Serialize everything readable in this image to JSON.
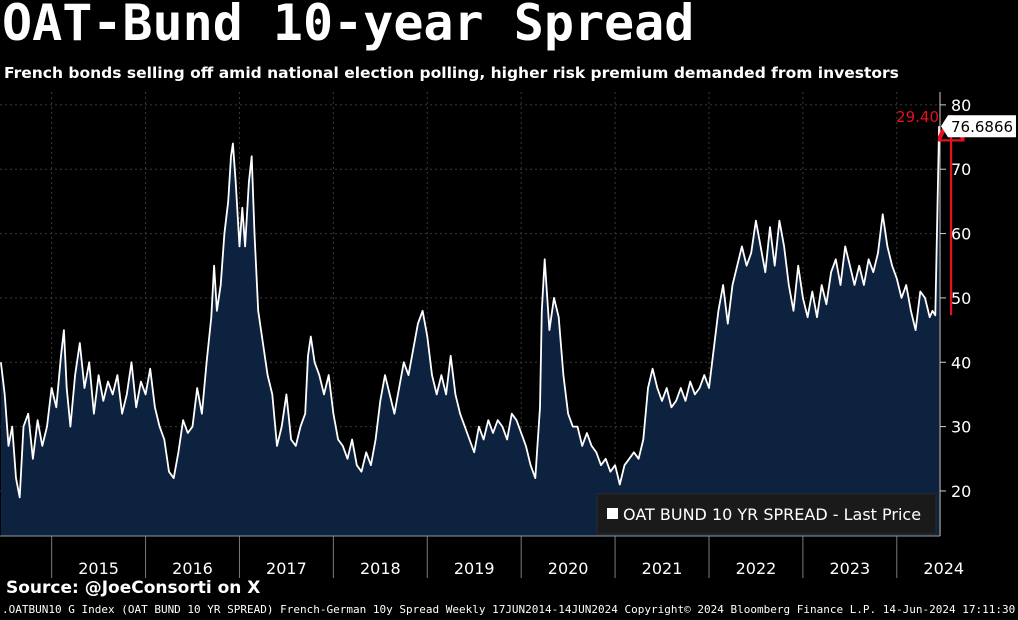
{
  "page": {
    "title": "OAT-Bund 10-year Spread",
    "subtitle": "French bonds selling off amid national election polling, higher risk premium demanded from investors",
    "source": "Source: @JoeConsorti on X",
    "footer": ".OATBUN10 G Index (OAT BUND 10 YR SPREAD) French-German 10y Spread  Weekly 17JUN2014-14JUN2024 Copyright© 2024 Bloomberg Finance L.P. 14-Jun-2024 17:11:30"
  },
  "chart_data": {
    "type": "area",
    "x_unit": "year",
    "ylim": [
      13,
      82
    ],
    "xlim": [
      2014.45,
      2024.46
    ],
    "yticks": [
      20,
      30,
      40,
      50,
      60,
      70,
      80
    ],
    "x_tick_labels": [
      "2015",
      "2016",
      "2017",
      "2018",
      "2019",
      "2020",
      "2021",
      "2022",
      "2023",
      "2024"
    ],
    "grid": true,
    "legend": {
      "label": "OAT BUND 10 YR SPREAD - Last Price",
      "placement": "bottom-right"
    },
    "last_value_label": "76.6866",
    "last_value": 76.6866,
    "annotation": {
      "label": "29.40",
      "from": 47.3,
      "to": 76.6866,
      "color": "#e8101c"
    },
    "colors": {
      "line": "#ffffff",
      "fill": "#0d223f",
      "grid": "#3a3a3a",
      "annotation": "#e8101c"
    },
    "series": [
      {
        "points": [
          [
            2014.46,
            40
          ],
          [
            2014.5,
            35
          ],
          [
            2014.54,
            27
          ],
          [
            2014.58,
            30
          ],
          [
            2014.62,
            22
          ],
          [
            2014.66,
            19
          ],
          [
            2014.7,
            30
          ],
          [
            2014.75,
            32
          ],
          [
            2014.8,
            25
          ],
          [
            2014.85,
            31
          ],
          [
            2014.9,
            27
          ],
          [
            2014.95,
            30
          ],
          [
            2015.0,
            36
          ],
          [
            2015.05,
            33
          ],
          [
            2015.1,
            41
          ],
          [
            2015.13,
            45
          ],
          [
            2015.16,
            36
          ],
          [
            2015.2,
            30
          ],
          [
            2015.25,
            38
          ],
          [
            2015.3,
            43
          ],
          [
            2015.35,
            36
          ],
          [
            2015.4,
            40
          ],
          [
            2015.45,
            32
          ],
          [
            2015.5,
            38
          ],
          [
            2015.55,
            34
          ],
          [
            2015.6,
            37
          ],
          [
            2015.65,
            35
          ],
          [
            2015.7,
            38
          ],
          [
            2015.75,
            32
          ],
          [
            2015.8,
            35
          ],
          [
            2015.85,
            40
          ],
          [
            2015.9,
            33
          ],
          [
            2015.95,
            37
          ],
          [
            2016.0,
            35
          ],
          [
            2016.05,
            39
          ],
          [
            2016.1,
            33
          ],
          [
            2016.15,
            30
          ],
          [
            2016.2,
            28
          ],
          [
            2016.25,
            23
          ],
          [
            2016.3,
            22
          ],
          [
            2016.35,
            26
          ],
          [
            2016.4,
            31
          ],
          [
            2016.45,
            29
          ],
          [
            2016.5,
            30
          ],
          [
            2016.55,
            36
          ],
          [
            2016.6,
            32
          ],
          [
            2016.65,
            40
          ],
          [
            2016.7,
            47
          ],
          [
            2016.73,
            55
          ],
          [
            2016.76,
            48
          ],
          [
            2016.8,
            52
          ],
          [
            2016.84,
            60
          ],
          [
            2016.88,
            65
          ],
          [
            2016.91,
            72
          ],
          [
            2016.93,
            74
          ],
          [
            2016.96,
            68
          ],
          [
            2017.0,
            58
          ],
          [
            2017.03,
            64
          ],
          [
            2017.06,
            58
          ],
          [
            2017.1,
            68
          ],
          [
            2017.13,
            72
          ],
          [
            2017.16,
            60
          ],
          [
            2017.2,
            48
          ],
          [
            2017.25,
            43
          ],
          [
            2017.3,
            38
          ],
          [
            2017.35,
            35
          ],
          [
            2017.4,
            27
          ],
          [
            2017.45,
            30
          ],
          [
            2017.5,
            35
          ],
          [
            2017.55,
            28
          ],
          [
            2017.6,
            27
          ],
          [
            2017.65,
            30
          ],
          [
            2017.7,
            32
          ],
          [
            2017.73,
            41
          ],
          [
            2017.76,
            44
          ],
          [
            2017.8,
            40
          ],
          [
            2017.85,
            38
          ],
          [
            2017.9,
            35
          ],
          [
            2017.95,
            38
          ],
          [
            2018.0,
            32
          ],
          [
            2018.05,
            28
          ],
          [
            2018.1,
            27
          ],
          [
            2018.15,
            25
          ],
          [
            2018.2,
            28
          ],
          [
            2018.25,
            24
          ],
          [
            2018.3,
            23
          ],
          [
            2018.35,
            26
          ],
          [
            2018.4,
            24
          ],
          [
            2018.45,
            28
          ],
          [
            2018.5,
            34
          ],
          [
            2018.55,
            38
          ],
          [
            2018.6,
            35
          ],
          [
            2018.65,
            32
          ],
          [
            2018.7,
            36
          ],
          [
            2018.75,
            40
          ],
          [
            2018.8,
            38
          ],
          [
            2018.85,
            42
          ],
          [
            2018.9,
            46
          ],
          [
            2018.95,
            48
          ],
          [
            2019.0,
            44
          ],
          [
            2019.05,
            38
          ],
          [
            2019.1,
            35
          ],
          [
            2019.15,
            38
          ],
          [
            2019.2,
            35
          ],
          [
            2019.25,
            41
          ],
          [
            2019.3,
            35
          ],
          [
            2019.35,
            32
          ],
          [
            2019.4,
            30
          ],
          [
            2019.45,
            28
          ],
          [
            2019.5,
            26
          ],
          [
            2019.55,
            30
          ],
          [
            2019.6,
            28
          ],
          [
            2019.65,
            31
          ],
          [
            2019.7,
            29
          ],
          [
            2019.75,
            31
          ],
          [
            2019.8,
            30
          ],
          [
            2019.85,
            28
          ],
          [
            2019.9,
            32
          ],
          [
            2019.95,
            31
          ],
          [
            2020.0,
            29
          ],
          [
            2020.05,
            27
          ],
          [
            2020.1,
            24
          ],
          [
            2020.15,
            22
          ],
          [
            2020.2,
            33
          ],
          [
            2020.22,
            48
          ],
          [
            2020.25,
            56
          ],
          [
            2020.3,
            45
          ],
          [
            2020.35,
            50
          ],
          [
            2020.4,
            47
          ],
          [
            2020.45,
            38
          ],
          [
            2020.5,
            32
          ],
          [
            2020.55,
            30
          ],
          [
            2020.6,
            30
          ],
          [
            2020.65,
            27
          ],
          [
            2020.7,
            29
          ],
          [
            2020.75,
            27
          ],
          [
            2020.8,
            26
          ],
          [
            2020.85,
            24
          ],
          [
            2020.9,
            25
          ],
          [
            2020.95,
            23
          ],
          [
            2021.0,
            24
          ],
          [
            2021.05,
            21
          ],
          [
            2021.1,
            24
          ],
          [
            2021.15,
            25
          ],
          [
            2021.2,
            26
          ],
          [
            2021.25,
            25
          ],
          [
            2021.3,
            28
          ],
          [
            2021.35,
            36
          ],
          [
            2021.4,
            39
          ],
          [
            2021.45,
            36
          ],
          [
            2021.5,
            34
          ],
          [
            2021.55,
            36
          ],
          [
            2021.6,
            33
          ],
          [
            2021.65,
            34
          ],
          [
            2021.7,
            36
          ],
          [
            2021.75,
            34
          ],
          [
            2021.8,
            37
          ],
          [
            2021.85,
            35
          ],
          [
            2021.9,
            36
          ],
          [
            2021.95,
            38
          ],
          [
            2022.0,
            36
          ],
          [
            2022.05,
            42
          ],
          [
            2022.1,
            48
          ],
          [
            2022.15,
            52
          ],
          [
            2022.2,
            46
          ],
          [
            2022.25,
            52
          ],
          [
            2022.3,
            55
          ],
          [
            2022.35,
            58
          ],
          [
            2022.4,
            55
          ],
          [
            2022.45,
            57
          ],
          [
            2022.5,
            62
          ],
          [
            2022.55,
            58
          ],
          [
            2022.6,
            54
          ],
          [
            2022.65,
            61
          ],
          [
            2022.7,
            55
          ],
          [
            2022.75,
            62
          ],
          [
            2022.8,
            58
          ],
          [
            2022.85,
            52
          ],
          [
            2022.9,
            48
          ],
          [
            2022.95,
            55
          ],
          [
            2023.0,
            50
          ],
          [
            2023.05,
            47
          ],
          [
            2023.1,
            51
          ],
          [
            2023.15,
            47
          ],
          [
            2023.2,
            52
          ],
          [
            2023.25,
            49
          ],
          [
            2023.3,
            54
          ],
          [
            2023.35,
            56
          ],
          [
            2023.4,
            52
          ],
          [
            2023.45,
            58
          ],
          [
            2023.5,
            55
          ],
          [
            2023.55,
            52
          ],
          [
            2023.6,
            55
          ],
          [
            2023.65,
            52
          ],
          [
            2023.7,
            56
          ],
          [
            2023.75,
            54
          ],
          [
            2023.8,
            57
          ],
          [
            2023.85,
            63
          ],
          [
            2023.9,
            58
          ],
          [
            2023.95,
            55
          ],
          [
            2024.0,
            53
          ],
          [
            2024.05,
            50
          ],
          [
            2024.1,
            52
          ],
          [
            2024.15,
            48
          ],
          [
            2024.2,
            45
          ],
          [
            2024.25,
            51
          ],
          [
            2024.3,
            50
          ],
          [
            2024.35,
            47
          ],
          [
            2024.38,
            48
          ],
          [
            2024.41,
            47.3
          ],
          [
            2024.43,
            62
          ],
          [
            2024.45,
            76.6866
          ]
        ]
      }
    ]
  }
}
